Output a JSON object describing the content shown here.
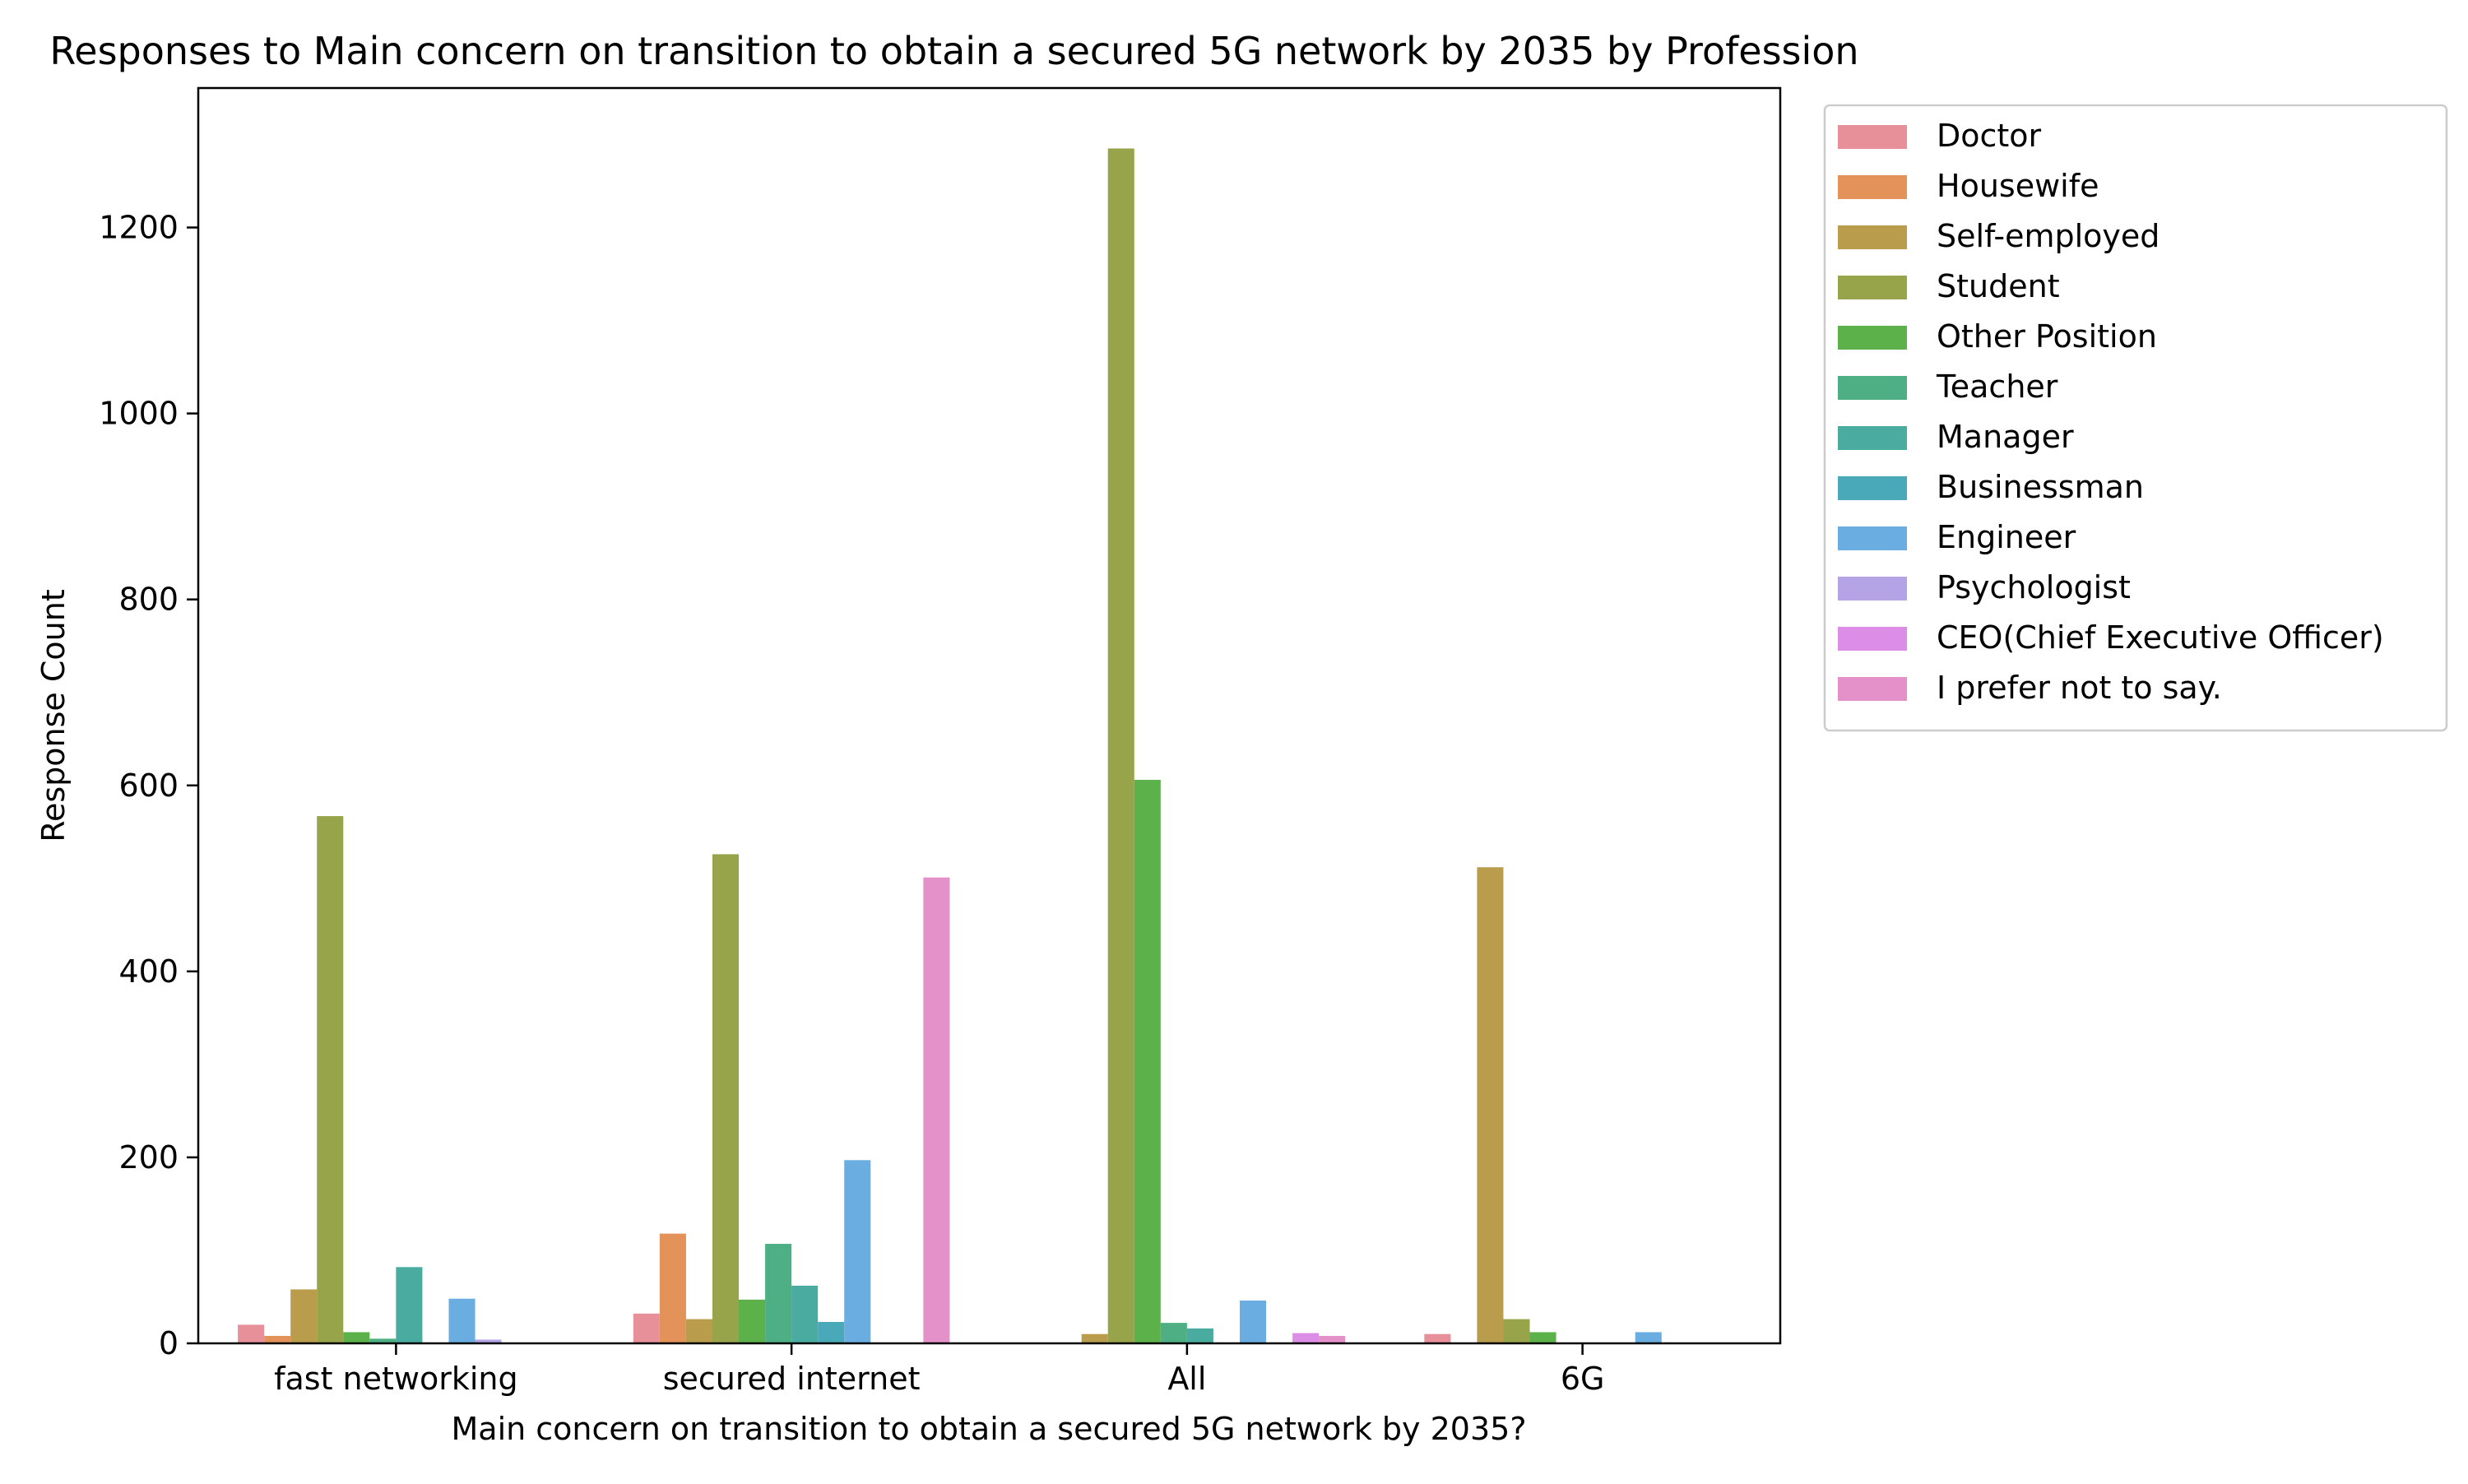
{
  "chart_data": {
    "type": "bar",
    "title": "Responses to Main concern on transition to obtain a secured 5G network by 2035 by Profession",
    "xlabel": "Main concern on transition to obtain a secured 5G network by 2035?",
    "ylabel": "Response Count",
    "categories": [
      "fast networking",
      "secured internet",
      "All",
      "6G"
    ],
    "ylim": [
      0,
      1350
    ],
    "yticks": [
      0,
      200,
      400,
      600,
      800,
      1000,
      1200
    ],
    "grid": false,
    "legend_position": "outside-right-top",
    "series": [
      {
        "name": "Doctor",
        "color": "#e8909a",
        "values": [
          20,
          32,
          0,
          10
        ]
      },
      {
        "name": "Housewife",
        "color": "#e3925a",
        "values": [
          8,
          118,
          0,
          0
        ]
      },
      {
        "name": "Self-employed",
        "color": "#b99d4c",
        "values": [
          58,
          26,
          10,
          512
        ]
      },
      {
        "name": "Student",
        "color": "#97a44a",
        "values": [
          567,
          526,
          1285,
          26
        ]
      },
      {
        "name": "Other Position",
        "color": "#5db14a",
        "values": [
          12,
          47,
          606,
          12
        ]
      },
      {
        "name": "Teacher",
        "color": "#4daf83",
        "values": [
          5,
          107,
          22,
          0
        ]
      },
      {
        "name": "Manager",
        "color": "#4aaba0",
        "values": [
          82,
          62,
          16,
          0
        ]
      },
      {
        "name": "Businessman",
        "color": "#4aa9b9",
        "values": [
          0,
          23,
          0,
          0
        ]
      },
      {
        "name": "Engineer",
        "color": "#6aade0",
        "values": [
          48,
          197,
          46,
          12
        ]
      },
      {
        "name": "Psychologist",
        "color": "#b4a4e6",
        "values": [
          4,
          0,
          0,
          0
        ]
      },
      {
        "name": "CEO(Chief Executive Officer)",
        "color": "#dc8ee6",
        "values": [
          0,
          0,
          11,
          0
        ]
      },
      {
        "name": "I prefer not to say.",
        "color": "#e591c9",
        "values": [
          0,
          501,
          8,
          0
        ]
      }
    ]
  }
}
